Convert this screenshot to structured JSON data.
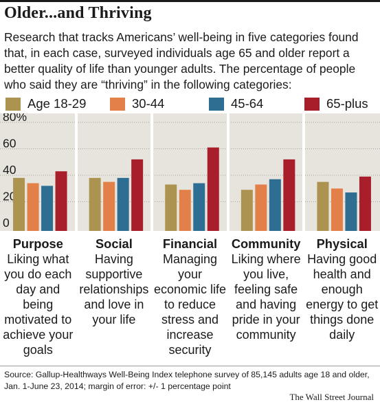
{
  "title": "Older...and Thriving",
  "intro": "Research that tracks Americans’ well-being in five categories found that, in each case, surveyed individuals age 65 and older report a better quality of life than younger adults. The percentage of people who said they are “thriving” in the following categories:",
  "colors": {
    "background": "#e7e4dd",
    "series": [
      "#ac9350",
      "#e38049",
      "#2e6e93",
      "#a81e2b"
    ]
  },
  "chart_data": {
    "type": "bar",
    "categories": [
      "Purpose",
      "Social",
      "Financial",
      "Community",
      "Physical"
    ],
    "category_descriptions": [
      "Liking what you do each day and being motivated to achieve your goals",
      "Having supportive relationships and love in your life",
      "Managing your economic life to reduce stress and increase security",
      "Liking where you live, feeling safe and having pride in your community",
      "Having good health and enough energy to get things done daily"
    ],
    "series": [
      {
        "name": "Age 18-29",
        "color": "#ac9350",
        "values": [
          38,
          38,
          33,
          29,
          35
        ]
      },
      {
        "name": "30-44",
        "color": "#e38049",
        "values": [
          34,
          35,
          29,
          33,
          30
        ]
      },
      {
        "name": "45-64",
        "color": "#2e6e93",
        "values": [
          32,
          38,
          34,
          37,
          27
        ]
      },
      {
        "name": "65-plus",
        "color": "#a81e2b",
        "values": [
          43,
          52,
          61,
          52,
          39
        ]
      }
    ],
    "yticks": [
      "0",
      "20",
      "40",
      "60",
      "80%"
    ],
    "ylim": [
      0,
      80
    ],
    "grid": true,
    "legend_position": "top"
  },
  "footer": {
    "source": "Source: Gallup-Healthways Well-Being Index telephone survey of 85,145 adults age 18 and older, Jan. 1-June 23, 2014; margin of error: +/- 1 percentage point",
    "credit": "The Wall Street Journal"
  }
}
